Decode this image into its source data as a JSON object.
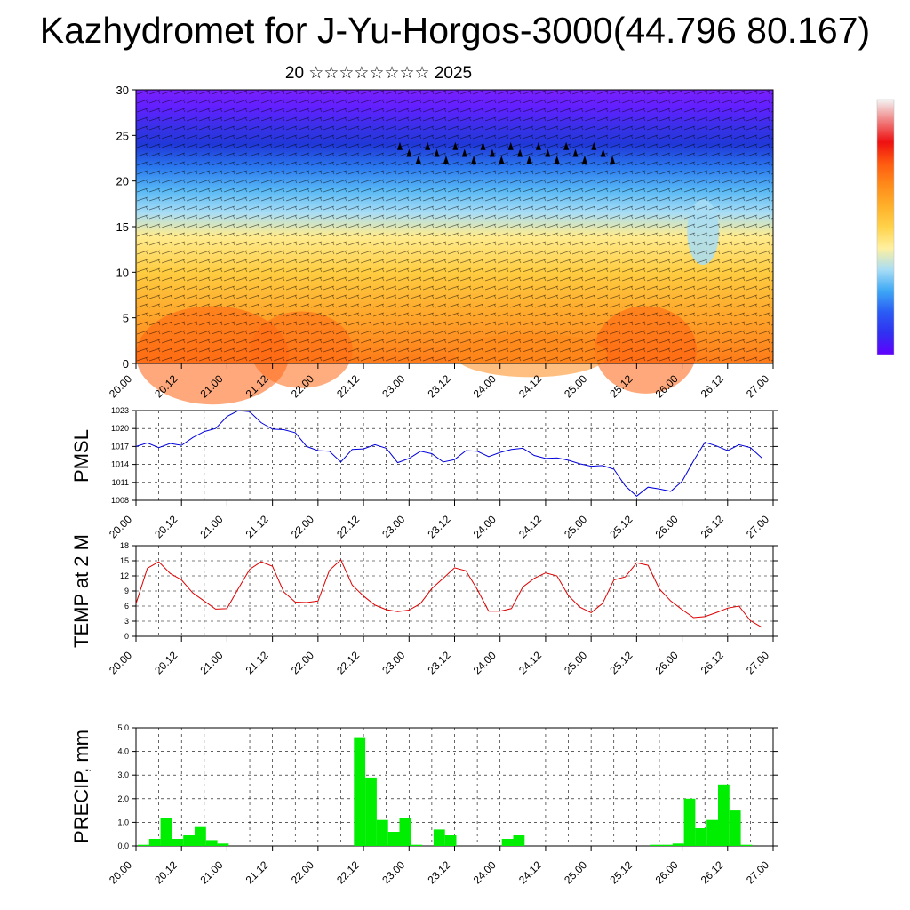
{
  "header": {
    "title": "Kazhydromet for J-Yu-Horgos-3000(44.796 80.167)",
    "subtitle": "20 ☆☆☆☆☆☆☆☆ 2025"
  },
  "colors": {
    "pmsl_line": "#0000dd",
    "temp_line": "#dd0000",
    "precip_bar": "#00ee00",
    "grid": "#000000"
  },
  "chart_data": [
    {
      "id": "cross-section",
      "type": "heatmap",
      "title": "",
      "xlabel": "",
      "ylabel": "",
      "xlim": [
        0,
        168
      ],
      "ylim": [
        0,
        30
      ],
      "x_ticks": [
        "20.00",
        "20.12",
        "21.00",
        "21.12",
        "22.00",
        "22.12",
        "23.00",
        "23.12",
        "24.00",
        "24.12",
        "25.00",
        "25.12",
        "26.00",
        "26.12",
        "27.00"
      ],
      "y_ticks": [
        "0",
        "5",
        "10",
        "15",
        "20",
        "25",
        "30"
      ],
      "colorbar": [
        "#6000ff",
        "#3030f0",
        "#2a5cf5",
        "#3ea8f5",
        "#a8ddf5",
        "#fff0a0",
        "#ffd24a",
        "#ffb02a",
        "#ff8a1a",
        "#ff5a10",
        "#ee1010",
        "#f08080",
        "#f4f4f4"
      ],
      "layers": [
        {
          "level": 0,
          "color": "#ff7a18"
        },
        {
          "level": 5,
          "color": "#ffa42a"
        },
        {
          "level": 10,
          "color": "#ffcc40"
        },
        {
          "level": 14,
          "color": "#ffec90"
        },
        {
          "level": 16.5,
          "color": "#a8ddf5"
        },
        {
          "level": 19,
          "color": "#58b8f5"
        },
        {
          "level": 21.5,
          "color": "#2a78ee"
        },
        {
          "level": 24,
          "color": "#2038d8"
        },
        {
          "level": 26,
          "color": "#3a30e8"
        },
        {
          "level": 28,
          "color": "#6020ff"
        },
        {
          "level": 30,
          "color": "#7a20ff"
        }
      ]
    },
    {
      "id": "pmsl",
      "type": "line",
      "ylabel": "PMSL",
      "xlim": [
        0,
        168
      ],
      "ylim": [
        1008,
        1023
      ],
      "y_ticks": [
        "1008",
        "1011",
        "1014",
        "1017",
        "1020",
        "1023"
      ],
      "x_ticks": [
        "20.00",
        "20.12",
        "21.00",
        "21.12",
        "22.00",
        "22.12",
        "23.00",
        "23.12",
        "24.00",
        "24.12",
        "25.00",
        "25.12",
        "26.00",
        "26.12",
        "27.00"
      ],
      "series": [
        {
          "x": [
            0,
            3,
            6,
            9,
            12,
            15,
            18,
            21,
            24,
            27,
            30,
            33,
            36,
            39,
            42,
            45,
            48,
            51,
            54,
            57,
            60,
            63,
            66,
            69,
            72,
            75,
            78,
            81,
            84,
            87,
            90,
            93,
            96,
            99,
            102,
            105,
            108,
            111,
            114,
            117,
            120,
            123,
            126,
            129,
            132,
            135,
            138,
            141,
            144,
            147,
            150,
            153,
            156,
            159,
            162,
            165
          ],
          "values": [
            1017,
            1017.6,
            1016.8,
            1017.5,
            1017.2,
            1018.5,
            1019.5,
            1020,
            1022,
            1023,
            1022.8,
            1021,
            1019.9,
            1019.8,
            1019.3,
            1017,
            1016.3,
            1016.2,
            1014.4,
            1016.5,
            1016.6,
            1017.3,
            1016.7,
            1014.3,
            1015,
            1016.2,
            1015.8,
            1014.4,
            1014.8,
            1016.3,
            1016.2,
            1015.3,
            1016,
            1016.5,
            1016.7,
            1015.5,
            1015,
            1015.1,
            1014.7,
            1014.1,
            1013.7,
            1013.8,
            1013.2,
            1010.4,
            1008.7,
            1010.2,
            1009.9,
            1009.5,
            1011.2,
            1014.6,
            1017.7,
            1017.1,
            1016.3,
            1017.3,
            1016.8,
            1015.1
          ]
        }
      ]
    },
    {
      "id": "temp",
      "type": "line",
      "ylabel": "TEMP at 2 M",
      "xlim": [
        0,
        168
      ],
      "ylim": [
        0,
        18
      ],
      "y_ticks": [
        "0",
        "3",
        "6",
        "9",
        "12",
        "15",
        "18"
      ],
      "x_ticks": [
        "20.00",
        "20.12",
        "21.00",
        "21.12",
        "22.00",
        "22.12",
        "23.00",
        "23.12",
        "24.00",
        "24.12",
        "25.00",
        "25.12",
        "26.00",
        "26.12",
        "27.00"
      ],
      "series": [
        {
          "x": [
            0,
            3,
            6,
            9,
            12,
            15,
            18,
            21,
            24,
            27,
            30,
            33,
            36,
            39,
            42,
            45,
            48,
            51,
            54,
            57,
            60,
            63,
            66,
            69,
            72,
            75,
            78,
            81,
            84,
            87,
            90,
            93,
            96,
            99,
            102,
            105,
            108,
            111,
            114,
            117,
            120,
            123,
            126,
            129,
            132,
            135,
            138,
            141,
            144,
            147,
            150,
            153,
            156,
            159,
            162,
            165
          ],
          "values": [
            6.5,
            13.5,
            14.8,
            12.5,
            11.2,
            8.6,
            7,
            5.4,
            5.5,
            9.5,
            13.3,
            14.8,
            13.9,
            8.8,
            6.8,
            6.7,
            7,
            13.1,
            15.2,
            10.2,
            8,
            6.2,
            5.3,
            4.9,
            5.2,
            6.5,
            9.5,
            11.5,
            13.6,
            13,
            9.3,
            5,
            5,
            5.5,
            9.8,
            11.5,
            12.6,
            12,
            8.1,
            5.8,
            4.7,
            6.5,
            11.2,
            11.8,
            14.6,
            14.1,
            9.4,
            7,
            5.3,
            3.7,
            3.9,
            4.7,
            5.6,
            6,
            3.1,
            1.8
          ]
        }
      ]
    },
    {
      "id": "precip",
      "type": "bar",
      "ylabel": "PRECIP, mm",
      "xlim": [
        0,
        168
      ],
      "ylim": [
        0,
        5
      ],
      "y_ticks": [
        "0.0",
        "1.0",
        "2.0",
        "3.0",
        "4.0",
        "5.0"
      ],
      "x_ticks": [
        "20.00",
        "20.12",
        "21.00",
        "21.12",
        "22.00",
        "22.12",
        "23.00",
        "23.12",
        "24.00",
        "24.12",
        "25.00",
        "25.12",
        "26.00",
        "26.12",
        "27.00"
      ],
      "categories": [
        0,
        3,
        6,
        9,
        12,
        15,
        18,
        21,
        24,
        27,
        30,
        33,
        36,
        39,
        42,
        45,
        48,
        51,
        54,
        57,
        60,
        63,
        66,
        69,
        72,
        75,
        78,
        81,
        84,
        87,
        90,
        93,
        96,
        99,
        102,
        105,
        108,
        111,
        114,
        117,
        120,
        123,
        126,
        129,
        132,
        135,
        138,
        141,
        144,
        147,
        150,
        153,
        156,
        159,
        162,
        165
      ],
      "values": [
        0.05,
        0.3,
        1.2,
        0.3,
        0.45,
        0.8,
        0.25,
        0.1,
        0,
        0,
        0,
        0,
        0,
        0,
        0,
        0,
        0,
        0,
        0,
        4.6,
        2.9,
        1.1,
        0.6,
        1.2,
        0.05,
        0,
        0.7,
        0.45,
        0,
        0,
        0,
        0,
        0.3,
        0.45,
        0,
        0,
        0,
        0,
        0,
        0,
        0,
        0,
        0,
        0,
        0,
        0.05,
        0.05,
        0.1,
        2.0,
        0.75,
        1.1,
        2.6,
        1.5,
        0.05,
        0,
        0
      ]
    }
  ]
}
